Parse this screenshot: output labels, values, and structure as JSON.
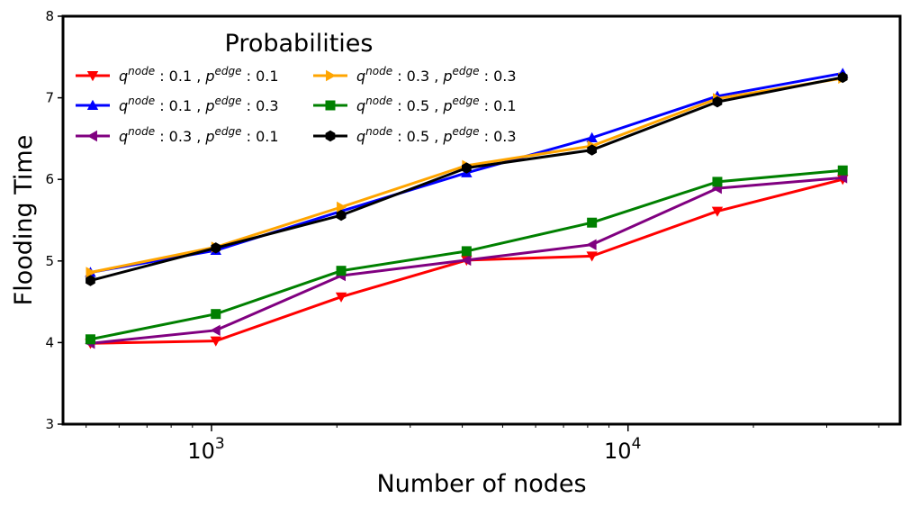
{
  "chart_data": {
    "type": "line",
    "xscale": "log",
    "xlabel": "Number of nodes",
    "ylabel": "Flooding Time",
    "ylim": [
      3,
      8
    ],
    "xlim": [
      440,
      45000
    ],
    "yticks": [
      "3",
      "4",
      "5",
      "6",
      "7",
      "8"
    ],
    "xticks": [
      {
        "value": 1000,
        "base": "10",
        "exp": "3"
      },
      {
        "value": 10000,
        "base": "10",
        "exp": "4"
      }
    ],
    "legend": {
      "title": "Probabilities",
      "location": "upper-left",
      "columns": 2
    },
    "x": [
      512,
      1024,
      2048,
      4096,
      8192,
      16384,
      32768
    ],
    "series": [
      {
        "name": "q^node : 0.1 , p^edge : 0.1",
        "q_label": "0.1",
        "p_label": "0.1",
        "color": "#ff0000",
        "marker": "triangle-down",
        "values": [
          3.99,
          4.02,
          4.56,
          5.01,
          5.06,
          5.61,
          6.0
        ]
      },
      {
        "name": "q^node : 0.1 , p^edge : 0.3",
        "q_label": "0.1",
        "p_label": "0.3",
        "color": "#0000ff",
        "marker": "triangle-up",
        "values": [
          4.86,
          5.13,
          5.61,
          6.08,
          6.51,
          7.02,
          7.3
        ]
      },
      {
        "name": "q^node : 0.3 , p^edge : 0.1",
        "q_label": "0.3",
        "p_label": "0.1",
        "color": "#800080",
        "marker": "triangle-left",
        "values": [
          3.99,
          4.15,
          4.82,
          5.01,
          5.2,
          5.89,
          6.02
        ]
      },
      {
        "name": "q^node : 0.3 , p^edge : 0.3",
        "q_label": "0.3",
        "p_label": "0.3",
        "color": "#ffa500",
        "marker": "triangle-right",
        "values": [
          4.86,
          5.17,
          5.66,
          6.17,
          6.41,
          6.99,
          7.24
        ]
      },
      {
        "name": "q^node : 0.5 , p^edge : 0.1",
        "q_label": "0.5",
        "p_label": "0.1",
        "color": "#008000",
        "marker": "square",
        "values": [
          4.04,
          4.35,
          4.88,
          5.12,
          5.47,
          5.97,
          6.11
        ]
      },
      {
        "name": "q^node : 0.5 , p^edge : 0.3",
        "q_label": "0.5",
        "p_label": "0.3",
        "color": "#000000",
        "marker": "hexagon",
        "values": [
          4.76,
          5.16,
          5.56,
          6.14,
          6.36,
          6.95,
          7.25
        ]
      }
    ]
  }
}
